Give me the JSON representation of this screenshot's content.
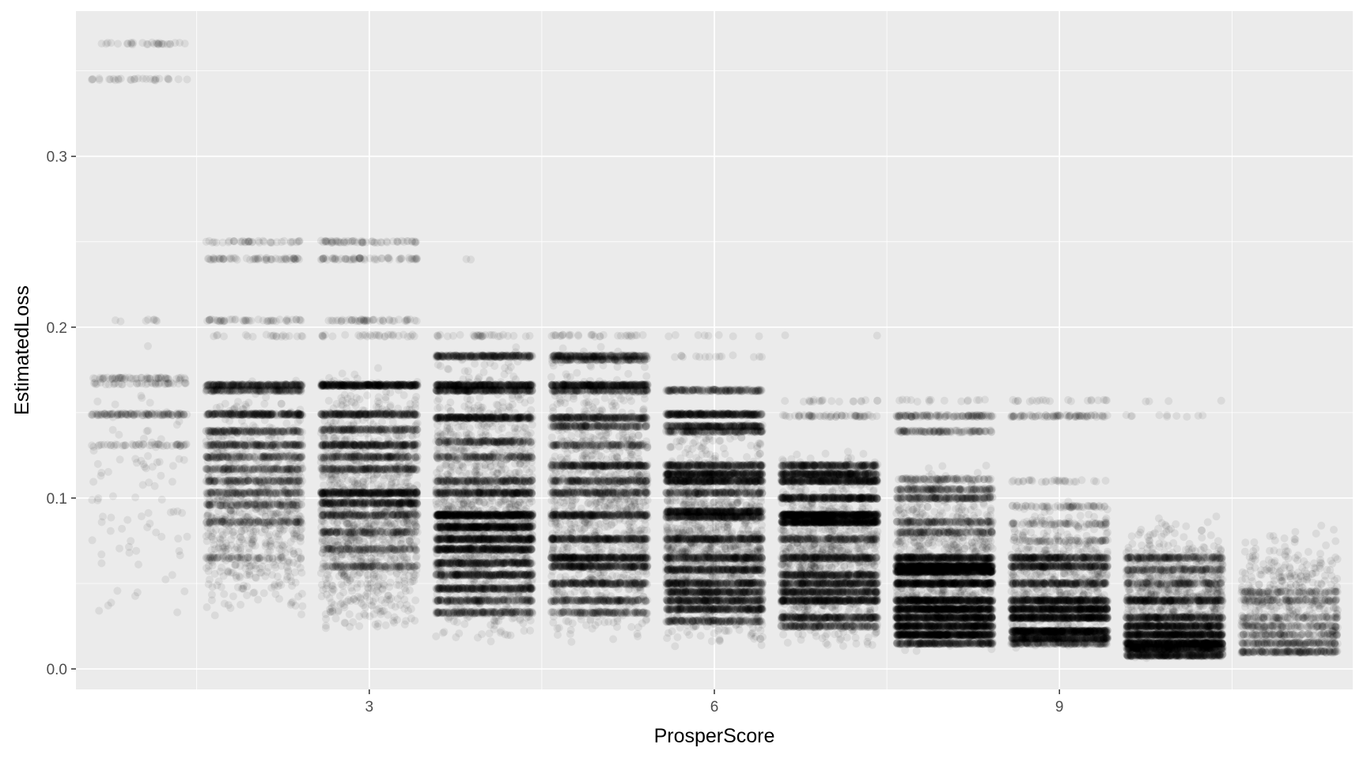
{
  "chart_data": {
    "type": "scatter",
    "title": "",
    "xlabel": "ProsperScore",
    "ylabel": "EstimatedLoss",
    "xlim": [
      0.45,
      11.55
    ],
    "ylim": [
      -0.012,
      0.385
    ],
    "x_ticks": [
      3,
      6,
      9
    ],
    "y_ticks": [
      0.0,
      0.1,
      0.2,
      0.3
    ],
    "x_tick_labels": [
      "3",
      "6",
      "9"
    ],
    "y_tick_labels": [
      "0.0",
      "0.1",
      "0.2",
      "0.3"
    ],
    "grid": true,
    "jitter_width": 0.42,
    "point_color": "#000000",
    "point_alpha": 0.07,
    "panel_background": "#ebebeb",
    "grid_color": "#ffffff",
    "groups": [
      {
        "x": 1,
        "bands": [
          [
            0.366,
            30
          ],
          [
            0.345,
            30
          ],
          [
            0.204,
            8
          ],
          [
            0.17,
            60
          ],
          [
            0.167,
            40
          ],
          [
            0.149,
            120
          ],
          [
            0.131,
            50
          ]
        ],
        "spread": [
          0.03,
          0.195,
          90
        ]
      },
      {
        "x": 2,
        "bands": [
          [
            0.25,
            40
          ],
          [
            0.24,
            60
          ],
          [
            0.204,
            50
          ],
          [
            0.195,
            20
          ],
          [
            0.166,
            300
          ],
          [
            0.163,
            200
          ],
          [
            0.149,
            300
          ],
          [
            0.139,
            200
          ],
          [
            0.131,
            200
          ],
          [
            0.124,
            150
          ],
          [
            0.117,
            150
          ],
          [
            0.11,
            150
          ],
          [
            0.103,
            150
          ],
          [
            0.096,
            120
          ],
          [
            0.086,
            120
          ],
          [
            0.065,
            60
          ]
        ],
        "spread": [
          0.03,
          0.17,
          700
        ]
      },
      {
        "x": 3,
        "bands": [
          [
            0.25,
            60
          ],
          [
            0.24,
            60
          ],
          [
            0.204,
            50
          ],
          [
            0.195,
            30
          ],
          [
            0.166,
            500
          ],
          [
            0.149,
            300
          ],
          [
            0.14,
            200
          ],
          [
            0.131,
            300
          ],
          [
            0.124,
            200
          ],
          [
            0.117,
            200
          ],
          [
            0.103,
            400
          ],
          [
            0.097,
            300
          ],
          [
            0.09,
            200
          ],
          [
            0.08,
            150
          ],
          [
            0.07,
            120
          ],
          [
            0.06,
            120
          ]
        ],
        "spread": [
          0.02,
          0.18,
          1100
        ]
      },
      {
        "x": 4,
        "bands": [
          [
            0.24,
            2
          ],
          [
            0.195,
            30
          ],
          [
            0.183,
            300
          ],
          [
            0.166,
            400
          ],
          [
            0.163,
            300
          ],
          [
            0.147,
            400
          ],
          [
            0.133,
            200
          ],
          [
            0.124,
            150
          ],
          [
            0.11,
            200
          ],
          [
            0.103,
            300
          ],
          [
            0.09,
            600
          ],
          [
            0.083,
            500
          ],
          [
            0.076,
            400
          ],
          [
            0.07,
            400
          ],
          [
            0.062,
            300
          ],
          [
            0.055,
            300
          ],
          [
            0.047,
            300
          ],
          [
            0.04,
            200
          ],
          [
            0.033,
            200
          ]
        ],
        "spread": [
          0.015,
          0.19,
          1200
        ]
      },
      {
        "x": 5,
        "bands": [
          [
            0.195,
            30
          ],
          [
            0.183,
            250
          ],
          [
            0.181,
            150
          ],
          [
            0.166,
            400
          ],
          [
            0.163,
            200
          ],
          [
            0.147,
            300
          ],
          [
            0.142,
            200
          ],
          [
            0.131,
            150
          ],
          [
            0.119,
            300
          ],
          [
            0.11,
            200
          ],
          [
            0.103,
            200
          ],
          [
            0.09,
            300
          ],
          [
            0.076,
            300
          ],
          [
            0.065,
            400
          ],
          [
            0.06,
            300
          ],
          [
            0.05,
            250
          ],
          [
            0.04,
            200
          ],
          [
            0.033,
            150
          ]
        ],
        "spread": [
          0.015,
          0.19,
          1000
        ]
      },
      {
        "x": 6,
        "bands": [
          [
            0.195,
            8
          ],
          [
            0.183,
            15
          ],
          [
            0.163,
            200
          ],
          [
            0.149,
            400
          ],
          [
            0.142,
            300
          ],
          [
            0.139,
            200
          ],
          [
            0.119,
            300
          ],
          [
            0.114,
            400
          ],
          [
            0.11,
            400
          ],
          [
            0.103,
            200
          ],
          [
            0.092,
            400
          ],
          [
            0.089,
            300
          ],
          [
            0.076,
            300
          ],
          [
            0.065,
            300
          ],
          [
            0.058,
            300
          ],
          [
            0.05,
            300
          ],
          [
            0.045,
            300
          ],
          [
            0.04,
            300
          ],
          [
            0.035,
            300
          ],
          [
            0.028,
            200
          ]
        ],
        "spread": [
          0.012,
          0.15,
          1100
        ]
      },
      {
        "x": 7,
        "bands": [
          [
            0.195,
            2
          ],
          [
            0.157,
            20
          ],
          [
            0.148,
            60
          ],
          [
            0.119,
            300
          ],
          [
            0.114,
            400
          ],
          [
            0.11,
            400
          ],
          [
            0.1,
            400
          ],
          [
            0.09,
            700
          ],
          [
            0.086,
            600
          ],
          [
            0.076,
            200
          ],
          [
            0.065,
            300
          ],
          [
            0.055,
            300
          ],
          [
            0.05,
            300
          ],
          [
            0.045,
            300
          ],
          [
            0.04,
            400
          ],
          [
            0.03,
            300
          ],
          [
            0.025,
            200
          ]
        ],
        "spread": [
          0.012,
          0.13,
          900
        ]
      },
      {
        "x": 8,
        "bands": [
          [
            0.157,
            15
          ],
          [
            0.148,
            120
          ],
          [
            0.139,
            120
          ],
          [
            0.111,
            100
          ],
          [
            0.105,
            150
          ],
          [
            0.1,
            200
          ],
          [
            0.086,
            150
          ],
          [
            0.08,
            150
          ],
          [
            0.065,
            400
          ],
          [
            0.06,
            700
          ],
          [
            0.057,
            600
          ],
          [
            0.05,
            500
          ],
          [
            0.04,
            500
          ],
          [
            0.035,
            600
          ],
          [
            0.03,
            500
          ],
          [
            0.025,
            500
          ],
          [
            0.02,
            600
          ],
          [
            0.015,
            300
          ]
        ],
        "spread": [
          0.01,
          0.12,
          900
        ]
      },
      {
        "x": 9,
        "bands": [
          [
            0.157,
            20
          ],
          [
            0.148,
            80
          ],
          [
            0.11,
            30
          ],
          [
            0.095,
            60
          ],
          [
            0.085,
            60
          ],
          [
            0.075,
            60
          ],
          [
            0.065,
            300
          ],
          [
            0.06,
            300
          ],
          [
            0.05,
            250
          ],
          [
            0.04,
            400
          ],
          [
            0.035,
            500
          ],
          [
            0.03,
            500
          ],
          [
            0.022,
            600
          ],
          [
            0.018,
            400
          ],
          [
            0.015,
            200
          ]
        ],
        "spread": [
          0.01,
          0.1,
          600
        ]
      },
      {
        "x": 10,
        "bands": [
          [
            0.157,
            4
          ],
          [
            0.148,
            10
          ],
          [
            0.065,
            200
          ],
          [
            0.058,
            150
          ],
          [
            0.05,
            150
          ],
          [
            0.04,
            300
          ],
          [
            0.03,
            300
          ],
          [
            0.025,
            400
          ],
          [
            0.02,
            500
          ],
          [
            0.015,
            600
          ],
          [
            0.012,
            500
          ],
          [
            0.008,
            400
          ]
        ],
        "spread": [
          0.006,
          0.09,
          700
        ]
      },
      {
        "x": 11,
        "bands": [
          [
            0.045,
            80
          ],
          [
            0.04,
            80
          ],
          [
            0.03,
            80
          ],
          [
            0.025,
            100
          ],
          [
            0.02,
            100
          ],
          [
            0.015,
            150
          ],
          [
            0.01,
            200
          ]
        ],
        "spread": [
          0.008,
          0.085,
          400
        ]
      }
    ]
  }
}
